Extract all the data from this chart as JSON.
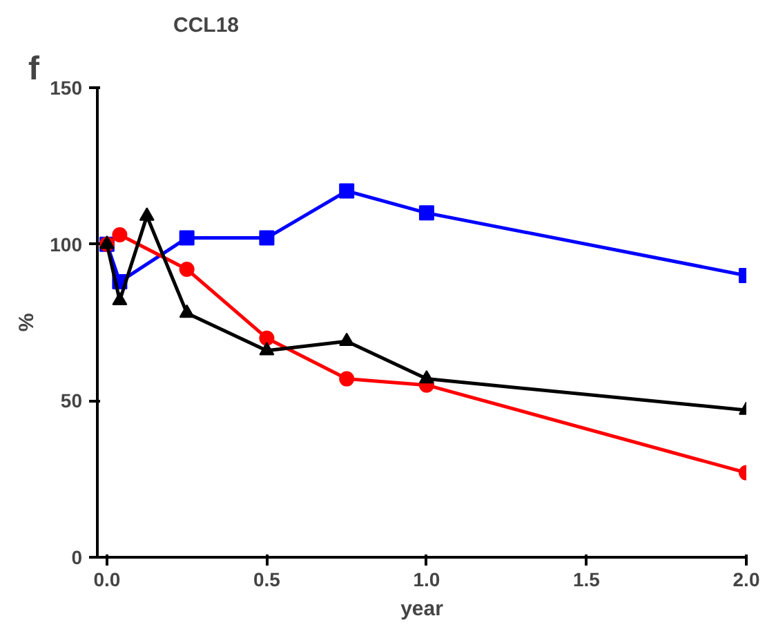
{
  "chart_data": {
    "type": "line",
    "title": "CCL18",
    "xlabel": "year",
    "ylabel": "%",
    "annotations": [
      "f"
    ],
    "xlim": [
      -0.03,
      2.0
    ],
    "xticks": [
      {
        "value": 0,
        "label": "0.0"
      },
      0.5,
      {
        "value": 1,
        "label": "1.0"
      },
      1.5,
      {
        "value": 2,
        "label": "2.0"
      }
    ],
    "ylim": [
      0,
      150
    ],
    "yticks": [
      0,
      50,
      100,
      150
    ],
    "grid": false,
    "series": [
      {
        "color": "#0000ff",
        "marker": "square",
        "x": [
          0,
          0.04,
          0.25,
          0.5,
          0.75,
          1.0,
          2.0
        ],
        "values": [
          100,
          88,
          102,
          102,
          117,
          110,
          90
        ]
      },
      {
        "color": "#ff0000",
        "marker": "circle",
        "x": [
          0,
          0.04,
          0.25,
          0.5,
          0.75,
          1.0,
          2.0
        ],
        "values": [
          100,
          103,
          92,
          70,
          57,
          55,
          27
        ]
      },
      {
        "color": "#000000",
        "marker": "triangle",
        "x": [
          0,
          0.04,
          0.125,
          0.25,
          0.5,
          0.75,
          1.0,
          2.0
        ],
        "values": [
          100,
          82,
          109,
          78,
          66,
          69,
          57,
          47
        ]
      }
    ]
  }
}
